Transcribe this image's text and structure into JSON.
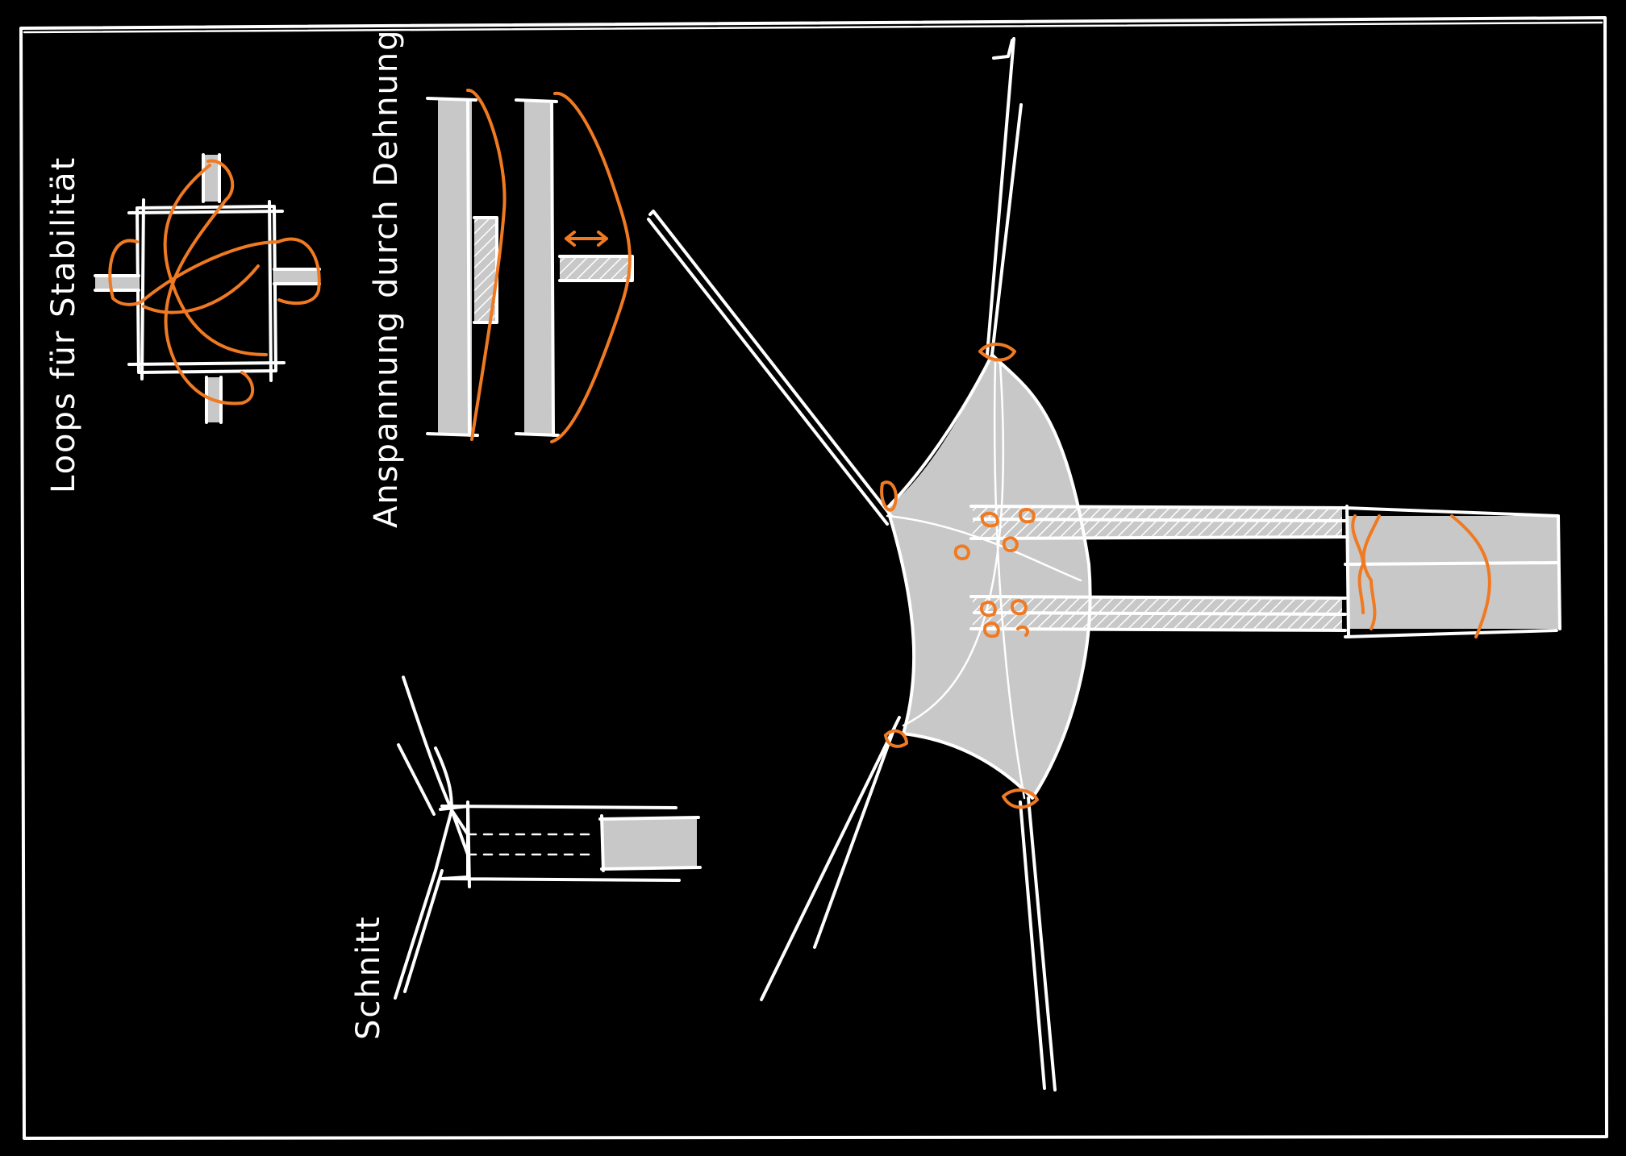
{
  "annotations": {
    "loops": "Loops für Stabilität",
    "anspannung": "Anspannung durch Dehnung",
    "schnitt": "Schnitt"
  },
  "colors": {
    "background": "#000000",
    "line": "#ffffff",
    "accent": "#f07a22",
    "fill": "#c8c8c8"
  }
}
